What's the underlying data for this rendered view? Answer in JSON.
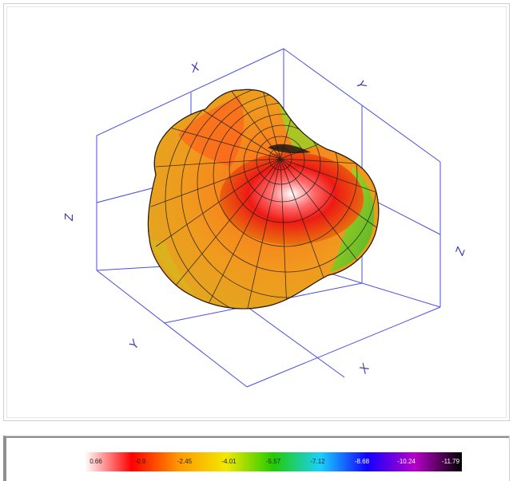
{
  "chart_data": {
    "type": "surface3d",
    "title": "",
    "axes": {
      "x_label": "X",
      "y_label": "Y",
      "z_label": "Z",
      "box_labels": [
        "X",
        "Y",
        "Z",
        "X",
        "Y",
        "Z"
      ]
    },
    "colorbar": {
      "ticks": [
        "0.66",
        "-0.9",
        "-2.45",
        "-4.01",
        "-5.57",
        "-7.12",
        "-8.68",
        "-10.24",
        "-11.79"
      ],
      "colors": [
        "#ffffff",
        "#ff0000",
        "#ff9900",
        "#f2e800",
        "#22cc00",
        "#19d0ff",
        "#1300ff",
        "#b800c8",
        "#000000"
      ],
      "min": -11.79,
      "max": 0.66
    },
    "colors": {
      "axis_box": "#4a4ee0",
      "mesh": "#1a1a1a",
      "surface_hot": "#ff2424",
      "surface_warm": "#f28a18",
      "surface_green": "#6ccf2a"
    }
  }
}
